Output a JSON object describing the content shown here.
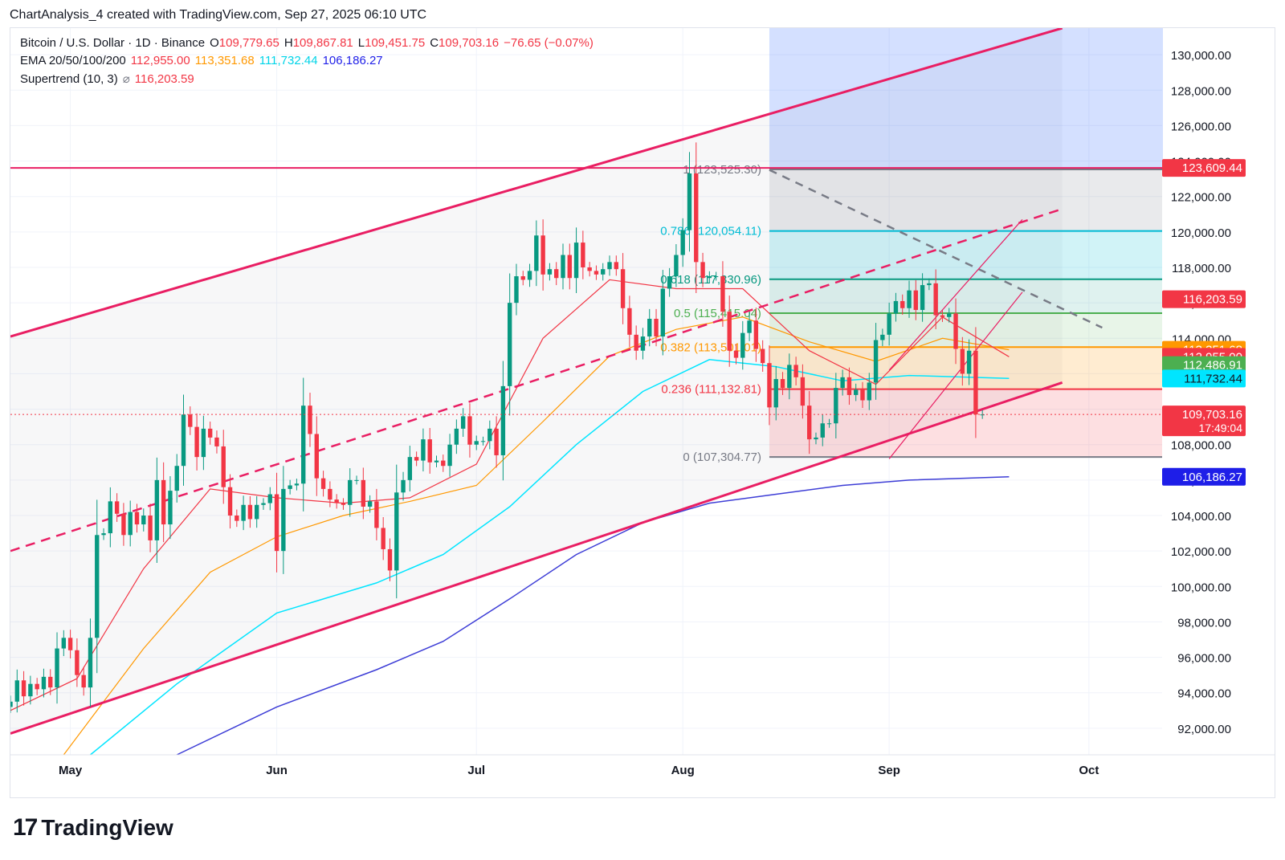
{
  "header": {
    "title": "ChartAnalysis_4 created with TradingView.com, Sep 27, 2025 06:10 UTC"
  },
  "legend": {
    "symbol": "Bitcoin / U.S. Dollar · 1D · Binance",
    "o_label": "O",
    "o_value": "109,779.65",
    "h_label": "H",
    "h_value": "109,867.81",
    "l_label": "L",
    "l_value": "109,451.75",
    "c_label": "C",
    "c_value": "109,703.16",
    "change": "−76.65 (−0.07%)",
    "ema_label": "EMA 20/50/100/200",
    "ema20": "112,955.00",
    "ema50": "113,351.68",
    "ema100": "111,732.44",
    "ema200": "106,186.27",
    "supertrend_label": "Supertrend (10, 3)",
    "supertrend_icon": "⌀",
    "supertrend_value": "116,203.59"
  },
  "colors": {
    "up": "#089981",
    "down": "#f23645",
    "channel": "#e91e63",
    "ema20": "#f23645",
    "ema50": "#ff9800",
    "ema100": "#00e5ff",
    "ema200": "#3d3dd6",
    "supertrend_up": "#4caf50",
    "supertrend_down": "#f23645",
    "fib_1": "#787b86",
    "fib_786": "#00bcd4",
    "fib_618": "#089981",
    "fib_5": "#4caf50",
    "fib_382": "#ff9800",
    "fib_236": "#f23645",
    "fib_0": "#787b86"
  },
  "footer": {
    "logo_mark": "17",
    "logo_text": "TradingView"
  },
  "chart_data": {
    "type": "candlestick",
    "symbol": "BTCUSD",
    "timeframe": "1D",
    "exchange": "Binance",
    "ylim": [
      90500,
      131500
    ],
    "y_ticks": [
      92000,
      94000,
      96000,
      98000,
      100000,
      102000,
      104000,
      106000,
      108000,
      110000,
      112000,
      114000,
      116000,
      118000,
      120000,
      122000,
      124000,
      126000,
      128000,
      130000
    ],
    "y_tick_labels": [
      "92,000.00",
      "94,000.00",
      "96,000.00",
      "98,000.00",
      "100,000.00",
      "102,000.00",
      "104,000.00",
      "106,000.00",
      "108,000.00",
      "110,000.00",
      "112,000.00",
      "114,000.00",
      "116,000.00",
      "118,000.00",
      "120,000.00",
      "122,000.00",
      "124,000.00",
      "126,000.00",
      "128,000.00",
      "130,000.00"
    ],
    "x_range": [
      "2025-04-22",
      "2025-10-12"
    ],
    "x_ticks": [
      {
        "date": "2025-05-01",
        "label": "May"
      },
      {
        "date": "2025-06-01",
        "label": "Jun"
      },
      {
        "date": "2025-07-01",
        "label": "Jul"
      },
      {
        "date": "2025-08-01",
        "label": "Aug"
      },
      {
        "date": "2025-09-01",
        "label": "Sep"
      },
      {
        "date": "2025-10-01",
        "label": "Oct"
      }
    ],
    "grid": true,
    "candles_start": "2025-04-22",
    "close": [
      93500,
      94700,
      93800,
      94500,
      94200,
      94900,
      94300,
      96500,
      97100,
      96400,
      95000,
      94300,
      97100,
      102900,
      103000,
      104800,
      104100,
      102900,
      104200,
      103500,
      104000,
      102600,
      106000,
      103500,
      105400,
      106800,
      109700,
      109000,
      107300,
      108900,
      108400,
      107900,
      105600,
      104000,
      103700,
      104600,
      103800,
      104600,
      104700,
      105200,
      102000,
      105500,
      105700,
      105800,
      110200,
      108600,
      106100,
      105500,
      104900,
      104700,
      104600,
      106000,
      106000,
      104500,
      104800,
      103300,
      102100,
      100900,
      105300,
      106000,
      107300,
      107100,
      108300,
      107000,
      107100,
      106800,
      108000,
      108900,
      109600,
      108000,
      108200,
      108200,
      108900,
      107400,
      111300,
      116000,
      117500,
      117300,
      117800,
      119800,
      117600,
      117900,
      117400,
      118700,
      117400,
      119400,
      118000,
      117800,
      117600,
      117900,
      118300,
      117900,
      115700,
      114200,
      113300,
      114100,
      115100,
      114100,
      116800,
      117500,
      118700,
      120100,
      123300,
      118300,
      117400,
      117500,
      117500,
      115500,
      113300,
      112900,
      114300,
      115000,
      113400,
      112600,
      110100,
      111700,
      111200,
      112500,
      111800,
      110200,
      108300,
      108400,
      109200,
      109200,
      111200,
      111800,
      110800,
      111100,
      110500,
      111500,
      113900,
      114200,
      115400,
      116100,
      115700,
      116700,
      115600,
      117000,
      117100,
      115300,
      115200,
      115400,
      113400,
      112000,
      113300,
      109700,
      109700
    ],
    "note_colors": "candle color derived from close vs previous close",
    "price_labels": [
      {
        "value": 123609.44,
        "label": "123,609.44",
        "bg": "#f23645",
        "fg": "#ffffff"
      },
      {
        "value": 116203.59,
        "label": "116,203.59",
        "bg": "#f23645",
        "fg": "#ffffff"
      },
      {
        "value": 113351.68,
        "label": "113,351.68",
        "bg": "#ff9800",
        "fg": "#ffffff"
      },
      {
        "value": 112955.0,
        "label": "112,955.00",
        "bg": "#f23645",
        "fg": "#ffffff"
      },
      {
        "value": 112486.91,
        "label": "112,486.91",
        "bg": "#4caf50",
        "fg": "#ffffff"
      },
      {
        "value": 111732.44,
        "label": "111,732.44",
        "bg": "#00e5ff",
        "fg": "#131722"
      },
      {
        "value": 109703.16,
        "label": "109,703.16",
        "sublabel": "17:49:04",
        "bg": "#f23645",
        "fg": "#ffffff"
      },
      {
        "value": 106186.27,
        "label": "106,186.27",
        "bg": "#1e1ee8",
        "fg": "#ffffff"
      }
    ],
    "fibonacci": [
      {
        "ratio": "1",
        "value": 123525.3,
        "label": "1 (123,525.30)",
        "color": "#787b86"
      },
      {
        "ratio": "0.786",
        "value": 120054.11,
        "label": "0.786 (120,054.11)",
        "color": "#00bcd4"
      },
      {
        "ratio": "0.618",
        "value": 117330.96,
        "label": "0.618 (117,330.96)",
        "color": "#089981"
      },
      {
        "ratio": "0.5",
        "value": 115415.04,
        "label": "0.5 (115,415.04)",
        "color": "#4caf50"
      },
      {
        "ratio": "0.382",
        "value": 113501.01,
        "label": "0.382 (113,501.01)",
        "color": "#ff9800"
      },
      {
        "ratio": "0.236",
        "value": 111132.81,
        "label": "0.236 (111,132.81)",
        "color": "#f23645"
      },
      {
        "ratio": "0",
        "value": 107304.77,
        "label": "0 (107,304.77)",
        "color": "#787b86"
      }
    ],
    "fib_range_dates": [
      "2025-08-14",
      "2025-09-26"
    ],
    "resistance_level": 123609.44,
    "channel_upper": [
      {
        "date": "2025-04-22",
        "value": 114100
      },
      {
        "date": "2025-09-27",
        "value": 131500
      }
    ],
    "channel_lower": [
      {
        "date": "2025-04-22",
        "value": 91700
      },
      {
        "date": "2025-09-27",
        "value": 111500
      }
    ],
    "channel_mid": [
      {
        "date": "2025-04-22",
        "value": 102000
      },
      {
        "date": "2025-09-27",
        "value": 121300
      }
    ],
    "descending_trendline": [
      {
        "date": "2025-08-14",
        "value": 123500
      },
      {
        "date": "2025-10-03",
        "value": 114600
      }
    ],
    "short_channel_upper": [
      {
        "date": "2025-09-01",
        "value": 112200
      },
      {
        "date": "2025-09-21",
        "value": 120700
      }
    ],
    "short_channel_lower": [
      {
        "date": "2025-09-01",
        "value": 107200
      },
      {
        "date": "2025-09-21",
        "value": 116600
      }
    ],
    "ema20": [
      [
        0,
        93000
      ],
      [
        10,
        94800
      ],
      [
        20,
        101000
      ],
      [
        30,
        105500
      ],
      [
        40,
        105000
      ],
      [
        50,
        104700
      ],
      [
        60,
        105000
      ],
      [
        70,
        106900
      ],
      [
        80,
        114000
      ],
      [
        90,
        117300
      ],
      [
        100,
        116800
      ],
      [
        110,
        116800
      ],
      [
        120,
        113300
      ],
      [
        130,
        111400
      ],
      [
        140,
        115200
      ],
      [
        150,
        112955
      ]
    ],
    "ema50": [
      [
        8,
        90500
      ],
      [
        20,
        96500
      ],
      [
        30,
        100800
      ],
      [
        40,
        102800
      ],
      [
        50,
        104000
      ],
      [
        60,
        104800
      ],
      [
        70,
        105700
      ],
      [
        80,
        109300
      ],
      [
        90,
        113000
      ],
      [
        100,
        114500
      ],
      [
        110,
        115200
      ],
      [
        120,
        113800
      ],
      [
        130,
        112700
      ],
      [
        140,
        114000
      ],
      [
        150,
        113351.68
      ]
    ],
    "ema100": [
      [
        12,
        90500
      ],
      [
        25,
        94500
      ],
      [
        40,
        98500
      ],
      [
        55,
        100200
      ],
      [
        65,
        101800
      ],
      [
        75,
        104500
      ],
      [
        85,
        108000
      ],
      [
        95,
        111000
      ],
      [
        105,
        112800
      ],
      [
        115,
        112400
      ],
      [
        125,
        111600
      ],
      [
        135,
        111900
      ],
      [
        150,
        111732.44
      ]
    ],
    "ema200": [
      [
        25,
        90500
      ],
      [
        40,
        93200
      ],
      [
        55,
        95300
      ],
      [
        65,
        96900
      ],
      [
        75,
        99300
      ],
      [
        85,
        101800
      ],
      [
        95,
        103600
      ],
      [
        105,
        104700
      ],
      [
        115,
        105200
      ],
      [
        125,
        105700
      ],
      [
        135,
        106000
      ],
      [
        150,
        106186.27
      ]
    ]
  }
}
